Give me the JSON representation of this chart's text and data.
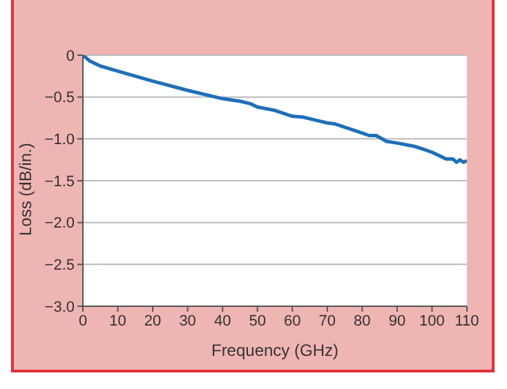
{
  "chart_data": {
    "type": "line",
    "xlabel": "Frequency (GHz)",
    "ylabel": "Loss (dB/in.)",
    "x": [
      0,
      2,
      5,
      10,
      20,
      30,
      40,
      45,
      48,
      50,
      55,
      60,
      63,
      67,
      70,
      72,
      80,
      82,
      84,
      87,
      90,
      95,
      98,
      100,
      102,
      104,
      106,
      107,
      108,
      109,
      110
    ],
    "series": [
      {
        "color": "#1f6fb8",
        "values": [
          0,
          -0.07,
          -0.13,
          -0.19,
          -0.31,
          -0.42,
          -0.52,
          -0.55,
          -0.58,
          -0.62,
          -0.66,
          -0.73,
          -0.74,
          -0.78,
          -0.81,
          -0.82,
          -0.93,
          -0.96,
          -0.96,
          -1.03,
          -1.05,
          -1.09,
          -1.13,
          -1.16,
          -1.2,
          -1.24,
          -1.24,
          -1.28,
          -1.25,
          -1.28,
          -1.26
        ]
      }
    ],
    "xlim": [
      0,
      110
    ],
    "xticks": [
      0,
      10,
      20,
      30,
      40,
      50,
      60,
      70,
      80,
      90,
      100,
      110
    ],
    "ylim": [
      -3,
      0
    ],
    "yticks": [
      {
        "value": -3,
        "label": "−3.0"
      },
      {
        "value": -2.5,
        "label": "−2.5"
      },
      {
        "value": -2,
        "label": "−2.0"
      },
      {
        "value": -1.5,
        "label": "−1.5"
      },
      {
        "value": -1,
        "label": "−1.0"
      },
      {
        "value": -0.5,
        "label": "−0.5"
      },
      0
    ],
    "grid": "y",
    "marker": "none",
    "line_style": "solid"
  }
}
